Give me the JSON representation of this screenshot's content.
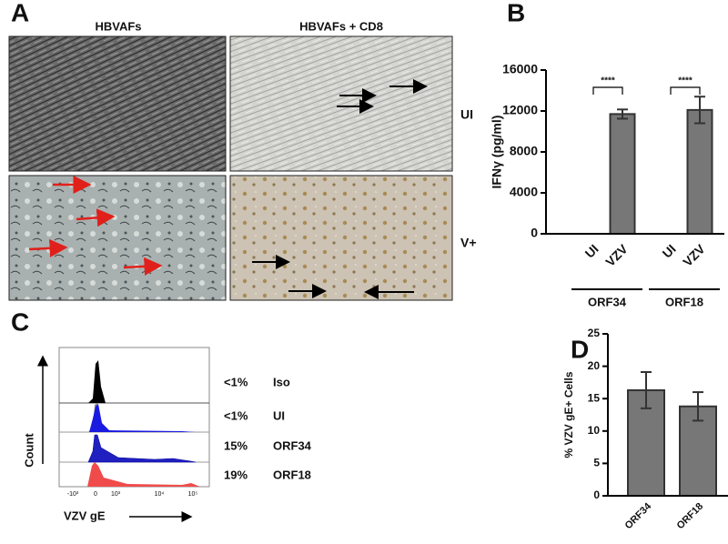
{
  "panels": {
    "A": {
      "letter": "A",
      "col_headers": [
        "HBVAFs",
        "HBVAFs + CD8"
      ],
      "row_labels": [
        "UI",
        "V+"
      ]
    },
    "C": {
      "letter": "C",
      "y_label": "Count",
      "x_label": "VZV gE",
      "x_tick_labels": [
        "-10³",
        "0",
        "10³",
        "10⁴",
        "10⁵"
      ],
      "rows": [
        {
          "percent": "<1%",
          "name": "Iso"
        },
        {
          "percent": "<1%",
          "name": "UI"
        },
        {
          "percent": "15%",
          "name": "ORF34"
        },
        {
          "percent": "19%",
          "name": "ORF18"
        }
      ]
    },
    "B": {
      "letter": "B"
    },
    "D": {
      "letter": "D"
    }
  },
  "chart_data": [
    {
      "type": "bar",
      "y_label": "IFNγ (pg/ml)",
      "categories": [
        "UI",
        "VZV",
        "UI",
        "VZV"
      ],
      "values": [
        0,
        11700,
        0,
        12100
      ],
      "errors": [
        0,
        450,
        0,
        1300
      ],
      "groups": [
        "ORF34",
        "ORF18"
      ],
      "annotations": [
        "****",
        "****"
      ],
      "ylim": [
        0,
        16000
      ],
      "yticks": [
        0,
        4000,
        8000,
        12000,
        16000
      ],
      "color": "#777777"
    },
    {
      "type": "bar",
      "y_label": "% VZV gE+ Cells",
      "categories": [
        "ORF34",
        "ORF18"
      ],
      "values": [
        16.3,
        13.8
      ],
      "errors": [
        2.8,
        2.2
      ],
      "ylim": [
        0,
        25
      ],
      "yticks": [
        0,
        5,
        10,
        15,
        20,
        25
      ],
      "color": "#777777"
    }
  ]
}
